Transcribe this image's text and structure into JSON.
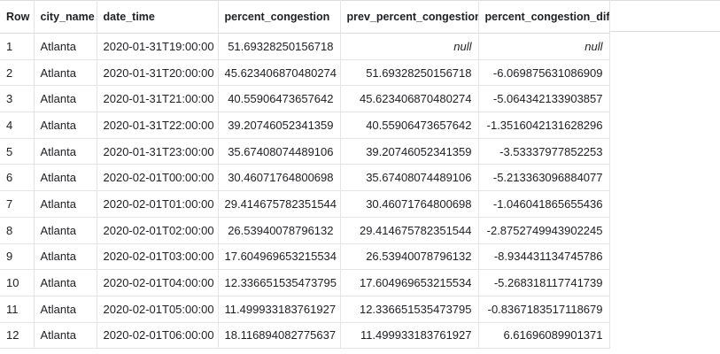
{
  "columns": {
    "row": "Row",
    "city_name": "city_name",
    "date_time": "date_time",
    "percent_congestion": "percent_congestion",
    "prev_percent_congestion": "prev_percent_congestion",
    "percent_congestion_diff": "percent_congestion_diff"
  },
  "rows": [
    {
      "row": "1",
      "city_name": "Atlanta",
      "date_time": "2020-01-31T19:00:00",
      "percent_congestion": "51.69328250156718",
      "prev_percent_congestion": "null",
      "percent_congestion_diff": "null"
    },
    {
      "row": "2",
      "city_name": "Atlanta",
      "date_time": "2020-01-31T20:00:00",
      "percent_congestion": "45.623406870480274",
      "prev_percent_congestion": "51.69328250156718",
      "percent_congestion_diff": "-6.069875631086909"
    },
    {
      "row": "3",
      "city_name": "Atlanta",
      "date_time": "2020-01-31T21:00:00",
      "percent_congestion": "40.55906473657642",
      "prev_percent_congestion": "45.623406870480274",
      "percent_congestion_diff": "-5.064342133903857"
    },
    {
      "row": "4",
      "city_name": "Atlanta",
      "date_time": "2020-01-31T22:00:00",
      "percent_congestion": "39.20746052341359",
      "prev_percent_congestion": "40.55906473657642",
      "percent_congestion_diff": "-1.3516042131628296"
    },
    {
      "row": "5",
      "city_name": "Atlanta",
      "date_time": "2020-01-31T23:00:00",
      "percent_congestion": "35.67408074489106",
      "prev_percent_congestion": "39.20746052341359",
      "percent_congestion_diff": "-3.53337977852253"
    },
    {
      "row": "6",
      "city_name": "Atlanta",
      "date_time": "2020-02-01T00:00:00",
      "percent_congestion": "30.46071764800698",
      "prev_percent_congestion": "35.67408074489106",
      "percent_congestion_diff": "-5.213363096884077"
    },
    {
      "row": "7",
      "city_name": "Atlanta",
      "date_time": "2020-02-01T01:00:00",
      "percent_congestion": "29.414675782351544",
      "prev_percent_congestion": "30.46071764800698",
      "percent_congestion_diff": "-1.046041865655436"
    },
    {
      "row": "8",
      "city_name": "Atlanta",
      "date_time": "2020-02-01T02:00:00",
      "percent_congestion": "26.53940078796132",
      "prev_percent_congestion": "29.414675782351544",
      "percent_congestion_diff": "-2.8752749943902245"
    },
    {
      "row": "9",
      "city_name": "Atlanta",
      "date_time": "2020-02-01T03:00:00",
      "percent_congestion": "17.604969653215534",
      "prev_percent_congestion": "26.53940078796132",
      "percent_congestion_diff": "-8.934431134745786"
    },
    {
      "row": "10",
      "city_name": "Atlanta",
      "date_time": "2020-02-01T04:00:00",
      "percent_congestion": "12.336651535473795",
      "prev_percent_congestion": "17.604969653215534",
      "percent_congestion_diff": "-5.268318117741739"
    },
    {
      "row": "11",
      "city_name": "Atlanta",
      "date_time": "2020-02-01T05:00:00",
      "percent_congestion": "11.499933183761927",
      "prev_percent_congestion": "12.336651535473795",
      "percent_congestion_diff": "-0.8367183517118679"
    },
    {
      "row": "12",
      "city_name": "Atlanta",
      "date_time": "2020-02-01T06:00:00",
      "percent_congestion": "18.116894082775637",
      "prev_percent_congestion": "11.499933183761927",
      "percent_congestion_diff": "6.61696089901371"
    }
  ],
  "colors": {
    "text": "#202124",
    "null_text": "#9aa0a6",
    "border": "#e3e5e8"
  }
}
